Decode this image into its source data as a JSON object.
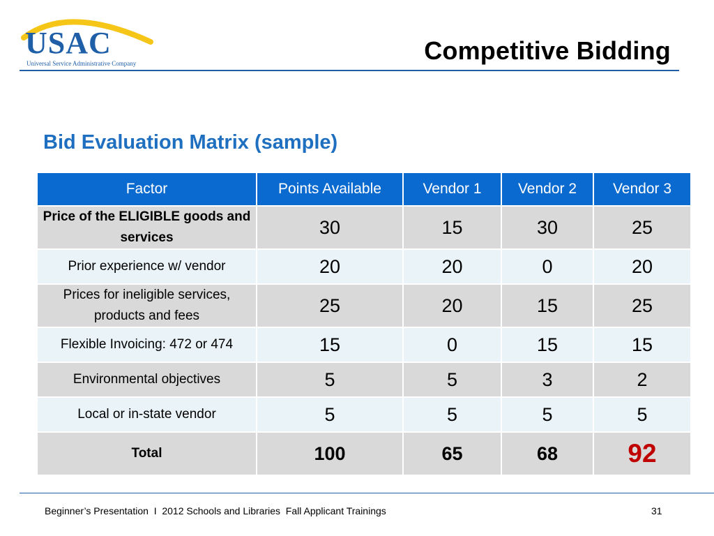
{
  "logo": {
    "text": "USAC",
    "subtitle": "Universal Service Administrative Company",
    "arc_color": "#f5c518",
    "text_color": "#1f5fa8"
  },
  "slide_title": "Competitive Bidding",
  "subheading": "Bid Evaluation Matrix (sample)",
  "table": {
    "headers": [
      "Factor",
      "Points Available",
      "Vendor 1",
      "Vendor 2",
      "Vendor 3"
    ],
    "rows": [
      {
        "factor": "Price of the ELIGIBLE goods and services",
        "values": [
          "30",
          "15",
          "30",
          "25"
        ]
      },
      {
        "factor": "Prior experience w/ vendor",
        "values": [
          "20",
          "20",
          "0",
          "20"
        ]
      },
      {
        "factor": "Prices for ineligible services, products and fees",
        "values": [
          "25",
          "20",
          "15",
          "25"
        ]
      },
      {
        "factor": "Flexible Invoicing: 472 or 474",
        "values": [
          "15",
          "0",
          "15",
          "15"
        ]
      },
      {
        "factor": "Environmental objectives",
        "values": [
          "5",
          "5",
          "3",
          "2"
        ]
      },
      {
        "factor": "Local or in-state vendor",
        "values": [
          "5",
          "5",
          "5",
          "5"
        ]
      }
    ],
    "total": {
      "label": "Total",
      "values": [
        "100",
        "65",
        "68",
        "92"
      ]
    },
    "colors": {
      "header_bg": "#0a6ad0",
      "row_gray": "#d9d9d9",
      "row_light": "#e9f3f8",
      "highlight": "#c00000"
    }
  },
  "footer": {
    "text": "Beginner’s Presentation  I  2012 Schools and Libraries  Fall Applicant Trainings",
    "page_number": "31"
  }
}
